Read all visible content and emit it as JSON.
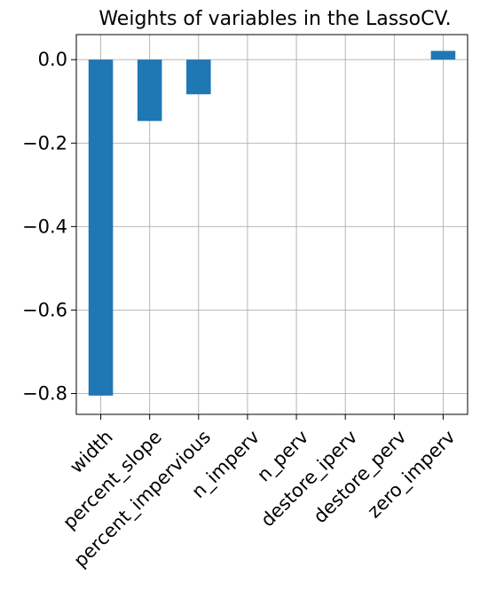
{
  "chart_data": {
    "type": "bar",
    "title": "Weights of variables in the LassoCV.",
    "xlabel": "",
    "ylabel": "",
    "categories": [
      "width",
      "percent_slope",
      "percent_impervious",
      "n_imperv",
      "n_perv",
      "destore_iperv",
      "destore_perv",
      "zero_imperv"
    ],
    "values": [
      -0.805,
      -0.147,
      -0.083,
      0.0,
      0.0,
      0.0,
      0.0,
      0.021
    ],
    "ylim": [
      -0.85,
      0.06
    ],
    "yticks": [
      0.0,
      -0.2,
      -0.4,
      -0.6,
      -0.8
    ],
    "ytick_labels": [
      "0.0",
      "−0.2",
      "−0.4",
      "−0.6",
      "−0.8"
    ],
    "grid": true,
    "bar_color": "#1f77b4"
  }
}
